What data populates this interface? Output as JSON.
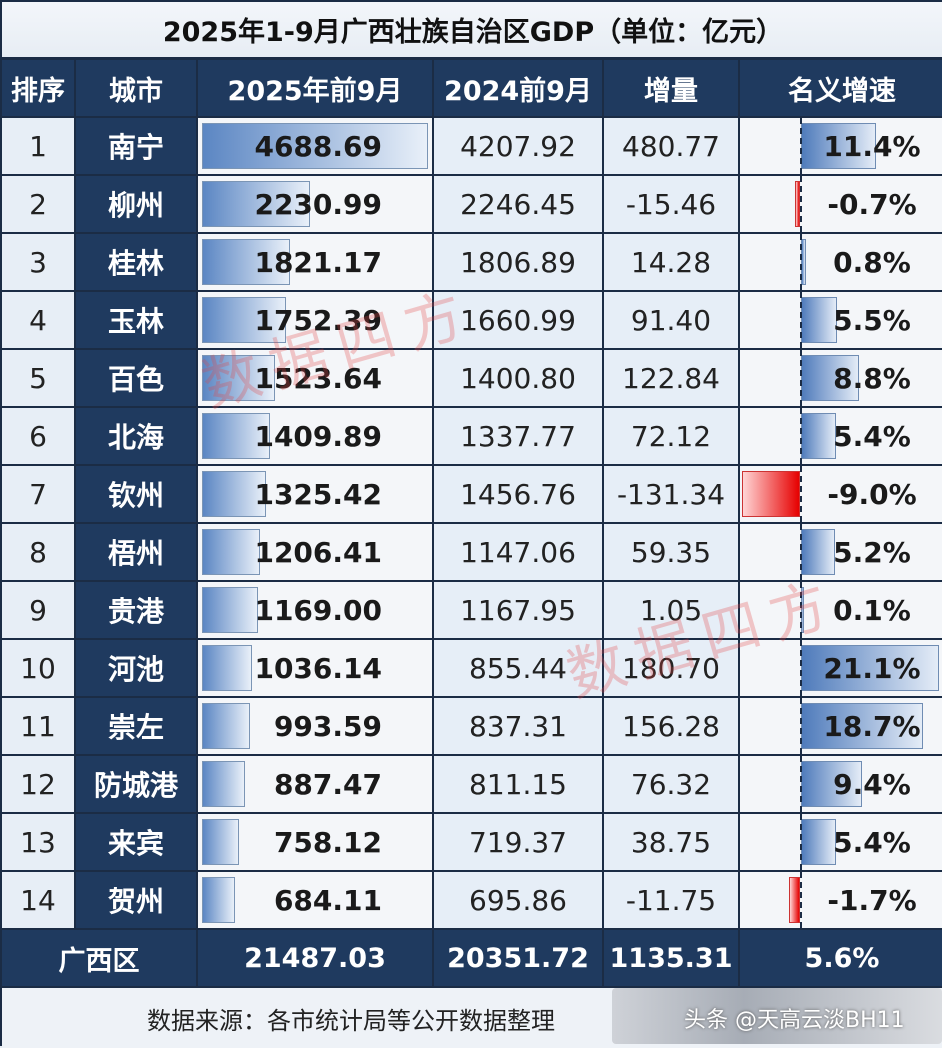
{
  "title": "2025年1-9月广西壮族自治区GDP（单位：亿元）",
  "headers": {
    "rank": "排序",
    "city": "城市",
    "gdp_2025": "2025年前9月",
    "gdp_2024": "2024前9月",
    "increment": "增量",
    "growth": "名义增速"
  },
  "rows": [
    {
      "rank": "1",
      "city": "南宁",
      "gdp_2025": "4688.69",
      "gdp_2024": "4207.92",
      "increment": "480.77",
      "growth": "11.4%"
    },
    {
      "rank": "2",
      "city": "柳州",
      "gdp_2025": "2230.99",
      "gdp_2024": "2246.45",
      "increment": "-15.46",
      "growth": "-0.7%"
    },
    {
      "rank": "3",
      "city": "桂林",
      "gdp_2025": "1821.17",
      "gdp_2024": "1806.89",
      "increment": "14.28",
      "growth": "0.8%"
    },
    {
      "rank": "4",
      "city": "玉林",
      "gdp_2025": "1752.39",
      "gdp_2024": "1660.99",
      "increment": "91.40",
      "growth": "5.5%"
    },
    {
      "rank": "5",
      "city": "百色",
      "gdp_2025": "1523.64",
      "gdp_2024": "1400.80",
      "increment": "122.84",
      "growth": "8.8%"
    },
    {
      "rank": "6",
      "city": "北海",
      "gdp_2025": "1409.89",
      "gdp_2024": "1337.77",
      "increment": "72.12",
      "growth": "5.4%"
    },
    {
      "rank": "7",
      "city": "钦州",
      "gdp_2025": "1325.42",
      "gdp_2024": "1456.76",
      "increment": "-131.34",
      "growth": "-9.0%"
    },
    {
      "rank": "8",
      "city": "梧州",
      "gdp_2025": "1206.41",
      "gdp_2024": "1147.06",
      "increment": "59.35",
      "growth": "5.2%"
    },
    {
      "rank": "9",
      "city": "贵港",
      "gdp_2025": "1169.00",
      "gdp_2024": "1167.95",
      "increment": "1.05",
      "growth": "0.1%"
    },
    {
      "rank": "10",
      "city": "河池",
      "gdp_2025": "1036.14",
      "gdp_2024": "855.44",
      "increment": "180.70",
      "growth": "21.1%"
    },
    {
      "rank": "11",
      "city": "崇左",
      "gdp_2025": "993.59",
      "gdp_2024": "837.31",
      "increment": "156.28",
      "growth": "18.7%"
    },
    {
      "rank": "12",
      "city": "防城港",
      "gdp_2025": "887.47",
      "gdp_2024": "811.15",
      "increment": "76.32",
      "growth": "9.4%"
    },
    {
      "rank": "13",
      "city": "来宾",
      "gdp_2025": "758.12",
      "gdp_2024": "719.37",
      "increment": "38.75",
      "growth": "5.4%"
    },
    {
      "rank": "14",
      "city": "贺州",
      "gdp_2025": "684.11",
      "gdp_2024": "695.86",
      "increment": "-11.75",
      "growth": "-1.7%"
    }
  ],
  "total": {
    "label": "广西区",
    "gdp_2025": "21487.03",
    "gdp_2024": "20351.72",
    "increment": "1135.31",
    "growth": "5.6%"
  },
  "footer": {
    "source": "数据来源：各市统计局等公开数据整理",
    "handle": "头条 @天高云淡BH11"
  },
  "watermark": "数据四方",
  "colors": {
    "header_bg": "#1f3a5f",
    "bar_positive": "#4f7bbb",
    "bar_negative": "#e60000"
  },
  "chart_data": {
    "type": "table",
    "title": "2025年1-9月广西壮族自治区GDP（单位：亿元）",
    "columns": [
      "排序",
      "城市",
      "2025年前9月",
      "2024前9月",
      "增量",
      "名义增速"
    ],
    "categories": [
      "南宁",
      "柳州",
      "桂林",
      "玉林",
      "百色",
      "北海",
      "钦州",
      "梧州",
      "贵港",
      "河池",
      "崇左",
      "防城港",
      "来宾",
      "贺州"
    ],
    "series": [
      {
        "name": "2025年前9月",
        "values": [
          4688.69,
          2230.99,
          1821.17,
          1752.39,
          1523.64,
          1409.89,
          1325.42,
          1206.41,
          1169.0,
          1036.14,
          993.59,
          887.47,
          758.12,
          684.11
        ]
      },
      {
        "name": "2024前9月",
        "values": [
          4207.92,
          2246.45,
          1806.89,
          1660.99,
          1400.8,
          1337.77,
          1456.76,
          1147.06,
          1167.95,
          855.44,
          837.31,
          811.15,
          719.37,
          695.86
        ]
      },
      {
        "name": "增量",
        "values": [
          480.77,
          -15.46,
          14.28,
          91.4,
          122.84,
          72.12,
          -131.34,
          59.35,
          1.05,
          180.7,
          156.28,
          76.32,
          38.75,
          -11.75
        ]
      },
      {
        "name": "名义增速(%)",
        "values": [
          11.4,
          -0.7,
          0.8,
          5.5,
          8.8,
          5.4,
          -9.0,
          5.2,
          0.1,
          21.1,
          18.7,
          9.4,
          5.4,
          -1.7
        ]
      }
    ],
    "total": {
      "label": "广西区",
      "gdp_2025": 21487.03,
      "gdp_2024": 20351.72,
      "increment": 1135.31,
      "growth": 5.6
    },
    "source": "数据来源：各市统计局等公开数据整理"
  }
}
